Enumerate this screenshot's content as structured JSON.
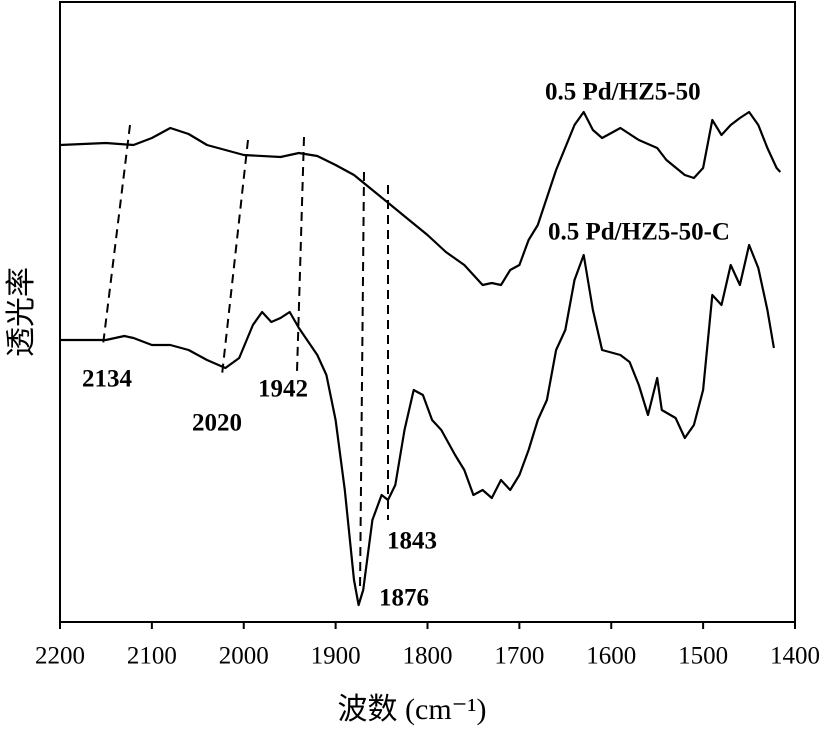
{
  "chart_data": {
    "type": "line",
    "xlabel": "波数 (cm⁻¹)",
    "ylabel": "透光率",
    "xlim": [
      2200,
      1400
    ],
    "ylim": [
      0,
      620
    ],
    "xticks": [
      2200,
      2100,
      2000,
      1900,
      1800,
      1700,
      1600,
      1500,
      1400
    ],
    "series": [
      {
        "name": "0.5 Pd/HZ5-50",
        "color": "#000000",
        "x": [
          2200,
          2150,
          2120,
          2100,
          2080,
          2060,
          2040,
          2000,
          1960,
          1940,
          1920,
          1900,
          1880,
          1860,
          1840,
          1820,
          1800,
          1780,
          1760,
          1740,
          1730,
          1720,
          1710,
          1700,
          1690,
          1680,
          1660,
          1640,
          1630,
          1620,
          1610,
          1590,
          1570,
          1550,
          1540,
          1520,
          1510,
          1500,
          1490,
          1480,
          1470,
          1460,
          1450,
          1440,
          1430,
          1420,
          1416
        ],
        "values": [
          477,
          479,
          477,
          484,
          494,
          488,
          477,
          467,
          465,
          469,
          466,
          457,
          447,
          432,
          417,
          402,
          387,
          370,
          357,
          337,
          339,
          337,
          352,
          357,
          382,
          397,
          452,
          497,
          510,
          492,
          484,
          494,
          482,
          474,
          462,
          447,
          444,
          454,
          502,
          487,
          497,
          504,
          510,
          497,
          474,
          454,
          450
        ]
      },
      {
        "name": "0.5 Pd/HZ5-50-C",
        "color": "#000000",
        "x": [
          2200,
          2150,
          2130,
          2120,
          2100,
          2080,
          2060,
          2040,
          2020,
          2005,
          1990,
          1980,
          1970,
          1960,
          1950,
          1940,
          1920,
          1910,
          1900,
          1890,
          1880,
          1875,
          1870,
          1860,
          1850,
          1843,
          1835,
          1825,
          1815,
          1805,
          1795,
          1785,
          1770,
          1760,
          1750,
          1740,
          1730,
          1720,
          1710,
          1700,
          1690,
          1680,
          1670,
          1660,
          1650,
          1640,
          1630,
          1620,
          1610,
          1590,
          1580,
          1570,
          1560,
          1550,
          1545,
          1530,
          1520,
          1510,
          1500,
          1490,
          1480,
          1470,
          1460,
          1450,
          1440,
          1430,
          1423
        ],
        "values": [
          282,
          282,
          286,
          284,
          277,
          277,
          272,
          262,
          254,
          264,
          297,
          310,
          300,
          304,
          310,
          294,
          267,
          247,
          202,
          132,
          42,
          17,
          32,
          102,
          127,
          122,
          137,
          192,
          232,
          227,
          202,
          192,
          167,
          152,
          127,
          132,
          124,
          142,
          132,
          147,
          172,
          202,
          222,
          272,
          292,
          342,
          367,
          312,
          272,
          267,
          260,
          237,
          207,
          244,
          212,
          204,
          184,
          197,
          232,
          327,
          317,
          357,
          337,
          377,
          354,
          312,
          274
        ]
      }
    ],
    "annotations": [
      2134,
      2020,
      1942,
      1876,
      1843
    ]
  }
}
